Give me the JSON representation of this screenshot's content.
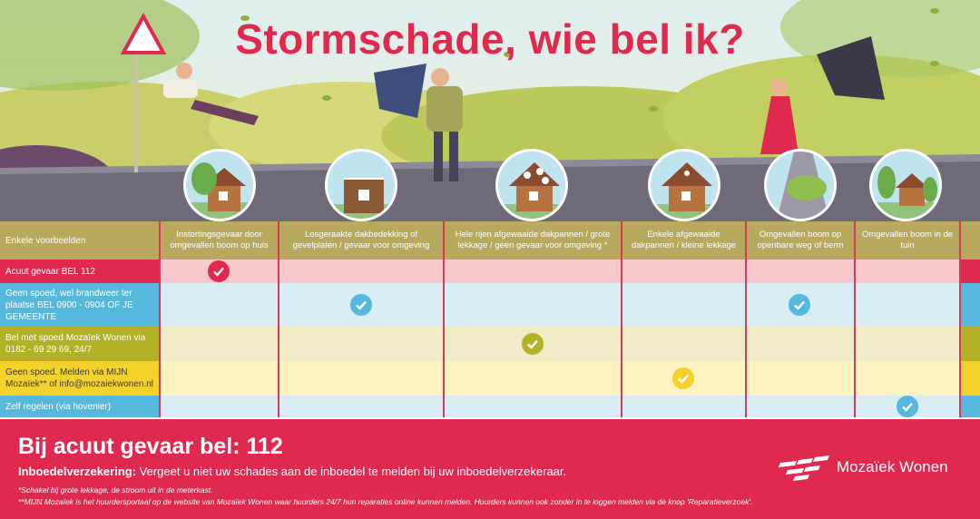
{
  "title": "Stormschade, wie bel ik?",
  "table": {
    "corner_label": "Enkele voorbeelden",
    "columns": [
      {
        "label": "Instortingsgevaar door omgevallen boom op huis",
        "icon": "tree-on-house-icon"
      },
      {
        "label": "Losgeraakte dakbedekking of gevelplaten / gevaar voor omgeving",
        "icon": "damaged-roof-house-icon"
      },
      {
        "label": "Hele rijen afgewaaide dakpannen / grote lekkage / geen gevaar voor omgeving *",
        "icon": "missing-tiles-house-icon"
      },
      {
        "label": "Enkele afgewaaide dakpannen / kleine lekkage",
        "icon": "few-tiles-house-icon"
      },
      {
        "label": "Omgevallen boom op openbare weg of berm",
        "icon": "tree-on-road-icon"
      },
      {
        "label": "Omgevallen boom in de tuin",
        "icon": "tree-in-garden-icon"
      }
    ],
    "rows": [
      {
        "label": "Acuut gevaar BEL 112",
        "check_col": 0,
        "color": "#e0294f",
        "bg": "#f8c9cc",
        "check_color": "#e0294f"
      },
      {
        "label": "Geen spoed, wel brandweer ter plaatse BEL 0900 - 0904 OF JE GEMEENTE",
        "check_cols": [
          1,
          4
        ],
        "color": "#56b8dc",
        "bg": "#d9edf5",
        "check_color": "#56b8dc"
      },
      {
        "label": "Bel met spoed Mozaïek Wonen via 0182 - 69 29 69, 24/7",
        "check_col": 2,
        "color": "#b3b128",
        "bg": "#f1ecc8",
        "check_color": "#b3b128"
      },
      {
        "label": "Geen spoed. Melden via MIJN Mozaïek** of info@mozaiekwonen.nl",
        "check_col": 3,
        "color": "#f5d22b",
        "bg": "#fff3c2",
        "check_color": "#f5d22b"
      },
      {
        "label": "Zelf regelen (via hovenier)",
        "check_col": 5,
        "color": "#56b8dc",
        "bg": "#d9edf5",
        "check_color": "#56b8dc"
      }
    ]
  },
  "footer": {
    "headline": "Bij acuut gevaar bel: 112",
    "insurance_bold": "Inboedelverzekering:",
    "insurance_text": " Vergeet u niet uw schades aan de inboedel te melden bij uw inboedelverzekeraar.",
    "note1": "*Schakel bij grote lekkage, de stroom uit in de meterkast.",
    "note2": "**MIJN Mozaïek is het huurdersportaal op de website van Mozaïek Wonen waar huurders 24/7 hun reparaties online kunnen melden. Huurders kunnen ook zonder in te loggen melden via de knop 'Reparatieverzoek'.",
    "logo_text": "Mozaïek Wonen"
  },
  "colors": {
    "brand": "#e0294f",
    "header_band": "#b9a95e"
  }
}
